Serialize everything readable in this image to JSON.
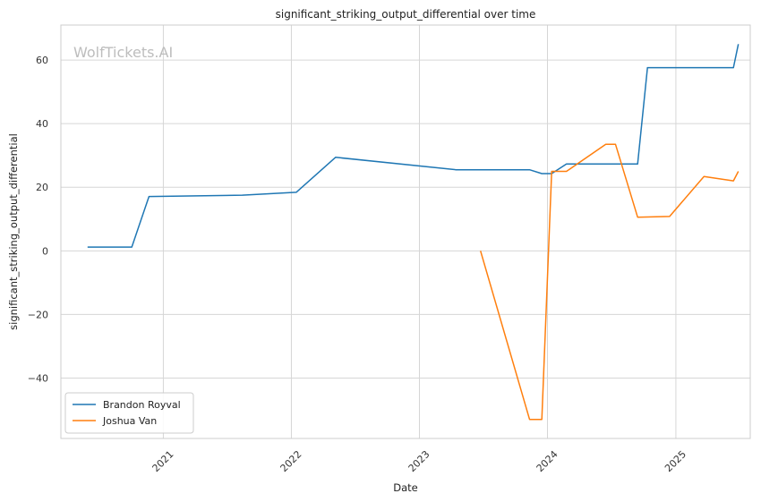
{
  "chart_data": {
    "type": "line",
    "title": "significant_striking_output_differential over time",
    "xlabel": "Date",
    "ylabel": "significant_striking_output_differential",
    "watermark": "WolfTickets.AI",
    "xlim": [
      "2020-03-15",
      "2025-08-01"
    ],
    "ylim": [
      -59,
      71
    ],
    "x_ticks": [
      "2021-01-01",
      "2022-01-01",
      "2023-01-01",
      "2024-01-01",
      "2025-01-01"
    ],
    "x_tick_labels": [
      "2021",
      "2022",
      "2023",
      "2024",
      "2025"
    ],
    "y_ticks": [
      -40,
      -20,
      0,
      20,
      40,
      60
    ],
    "y_tick_labels": [
      "−40",
      "−20",
      "0",
      "20",
      "40",
      "60"
    ],
    "grid": true,
    "legend_position": "lower-left",
    "series": [
      {
        "name": "Brandon Royval",
        "color": "#1f77b4",
        "points": [
          [
            "2020-05-30",
            1.2
          ],
          [
            "2020-10-03",
            1.2
          ],
          [
            "2020-11-21",
            17.1
          ],
          [
            "2021-08-14",
            17.5
          ],
          [
            "2022-01-15",
            18.4
          ],
          [
            "2022-05-07",
            29.4
          ],
          [
            "2023-04-15",
            25.5
          ],
          [
            "2023-11-11",
            25.5
          ],
          [
            "2023-12-16",
            24.3
          ],
          [
            "2024-01-13",
            24.3
          ],
          [
            "2024-02-24",
            27.3
          ],
          [
            "2024-09-14",
            27.3
          ],
          [
            "2024-10-12",
            57.6
          ],
          [
            "2025-06-14",
            57.6
          ],
          [
            "2025-06-28",
            65.0
          ]
        ]
      },
      {
        "name": "Joshua Van",
        "color": "#ff7f0e",
        "points": [
          [
            "2023-06-24",
            0.0
          ],
          [
            "2023-11-11",
            -53.0
          ],
          [
            "2023-12-16",
            -53.0
          ],
          [
            "2024-01-13",
            25.0
          ],
          [
            "2024-02-24",
            25.0
          ],
          [
            "2024-06-15",
            33.5
          ],
          [
            "2024-07-13",
            33.5
          ],
          [
            "2024-09-14",
            10.6
          ],
          [
            "2024-12-14",
            10.8
          ],
          [
            "2025-03-22",
            23.4
          ],
          [
            "2025-06-14",
            22.0
          ],
          [
            "2025-06-28",
            25.0
          ]
        ]
      }
    ]
  }
}
